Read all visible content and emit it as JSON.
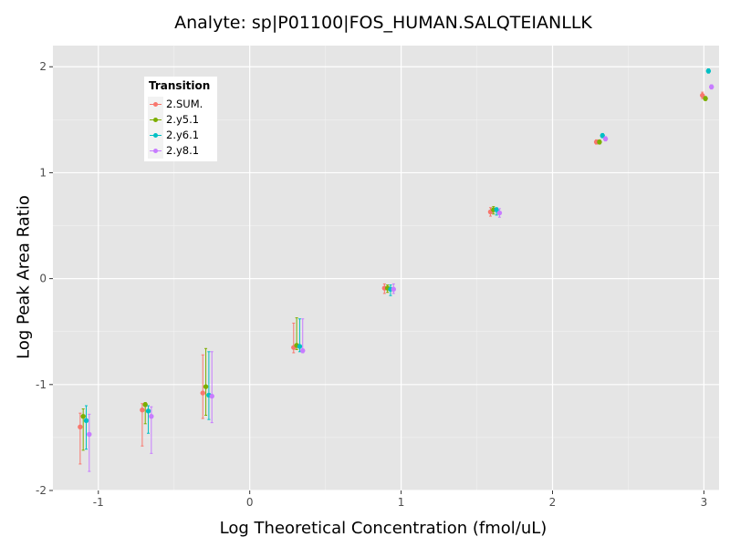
{
  "chart_data": {
    "type": "scatter",
    "title": "Analyte: sp|P01100|FOS_HUMAN.SALQTEIANLLK",
    "xlabel": "Log Theoretical Concentration (fmol/uL)",
    "ylabel": "Log Peak Area Ratio",
    "xlim": [
      -1.3,
      3.1
    ],
    "ylim": [
      -2.0,
      2.2
    ],
    "x_ticks": [
      -1,
      0,
      1,
      2,
      3
    ],
    "x_tick_labels": [
      "-1",
      "0",
      "1",
      "2",
      "3"
    ],
    "y_ticks": [
      -2,
      -1,
      0,
      1,
      2
    ],
    "y_tick_labels": [
      "-2",
      "-1",
      "0",
      "1",
      "2"
    ],
    "grid": true,
    "legend": {
      "title": "Transition",
      "placement": "top-left"
    },
    "series": [
      {
        "name": "2.SUM.",
        "color": "#F8766D",
        "points": [
          {
            "x": -1.12,
            "y": -1.4,
            "lo": -1.75,
            "hi": -1.27
          },
          {
            "x": -0.71,
            "y": -1.24,
            "lo": -1.58,
            "hi": -1.18
          },
          {
            "x": -0.31,
            "y": -1.08,
            "lo": -1.32,
            "hi": -0.72
          },
          {
            "x": 0.29,
            "y": -0.65,
            "lo": -0.7,
            "hi": -0.42
          },
          {
            "x": 0.89,
            "y": -0.09,
            "lo": -0.14,
            "hi": -0.05
          },
          {
            "x": 1.59,
            "y": 0.63,
            "lo": 0.59,
            "hi": 0.67
          },
          {
            "x": 2.29,
            "y": 1.29,
            "lo": 1.27,
            "hi": 1.31
          },
          {
            "x": 2.99,
            "y": 1.73,
            "lo": 1.7,
            "hi": 1.76
          }
        ]
      },
      {
        "name": "2.y5.1",
        "color": "#7CAE00",
        "points": [
          {
            "x": -1.1,
            "y": -1.3,
            "lo": -1.62,
            "hi": -1.23
          },
          {
            "x": -0.69,
            "y": -1.19,
            "lo": -1.37,
            "hi": -1.17
          },
          {
            "x": -0.29,
            "y": -1.02,
            "lo": -1.29,
            "hi": -0.66
          },
          {
            "x": 0.31,
            "y": -0.63,
            "lo": -0.67,
            "hi": -0.37
          },
          {
            "x": 0.91,
            "y": -0.09,
            "lo": -0.13,
            "hi": -0.06
          },
          {
            "x": 1.61,
            "y": 0.65,
            "lo": 0.61,
            "hi": 0.68
          },
          {
            "x": 2.31,
            "y": 1.29,
            "lo": 1.27,
            "hi": 1.31
          },
          {
            "x": 3.01,
            "y": 1.7,
            "lo": 1.68,
            "hi": 1.72
          }
        ]
      },
      {
        "name": "2.y6.1",
        "color": "#00BFC4",
        "points": [
          {
            "x": -1.08,
            "y": -1.34,
            "lo": -1.61,
            "hi": -1.2
          },
          {
            "x": -0.67,
            "y": -1.25,
            "lo": -1.46,
            "hi": -1.2
          },
          {
            "x": -0.27,
            "y": -1.1,
            "lo": -1.33,
            "hi": -0.69
          },
          {
            "x": 0.33,
            "y": -0.64,
            "lo": -0.69,
            "hi": -0.38
          },
          {
            "x": 0.93,
            "y": -0.1,
            "lo": -0.16,
            "hi": -0.06
          },
          {
            "x": 1.63,
            "y": 0.65,
            "lo": 0.6,
            "hi": 0.67
          },
          {
            "x": 2.33,
            "y": 1.35,
            "lo": 1.33,
            "hi": 1.37
          },
          {
            "x": 3.03,
            "y": 1.96,
            "lo": 1.94,
            "hi": 1.98
          }
        ]
      },
      {
        "name": "2.y8.1",
        "color": "#C77CFF",
        "points": [
          {
            "x": -1.06,
            "y": -1.47,
            "lo": -1.82,
            "hi": -1.28
          },
          {
            "x": -0.65,
            "y": -1.3,
            "lo": -1.65,
            "hi": -1.21
          },
          {
            "x": -0.25,
            "y": -1.11,
            "lo": -1.36,
            "hi": -0.69
          },
          {
            "x": 0.35,
            "y": -0.68,
            "lo": -0.7,
            "hi": -0.38
          },
          {
            "x": 0.95,
            "y": -0.1,
            "lo": -0.14,
            "hi": -0.05
          },
          {
            "x": 1.65,
            "y": 0.62,
            "lo": 0.58,
            "hi": 0.66
          },
          {
            "x": 2.35,
            "y": 1.32,
            "lo": 1.3,
            "hi": 1.34
          },
          {
            "x": 3.05,
            "y": 1.81,
            "lo": 1.79,
            "hi": 1.83
          }
        ]
      }
    ]
  }
}
